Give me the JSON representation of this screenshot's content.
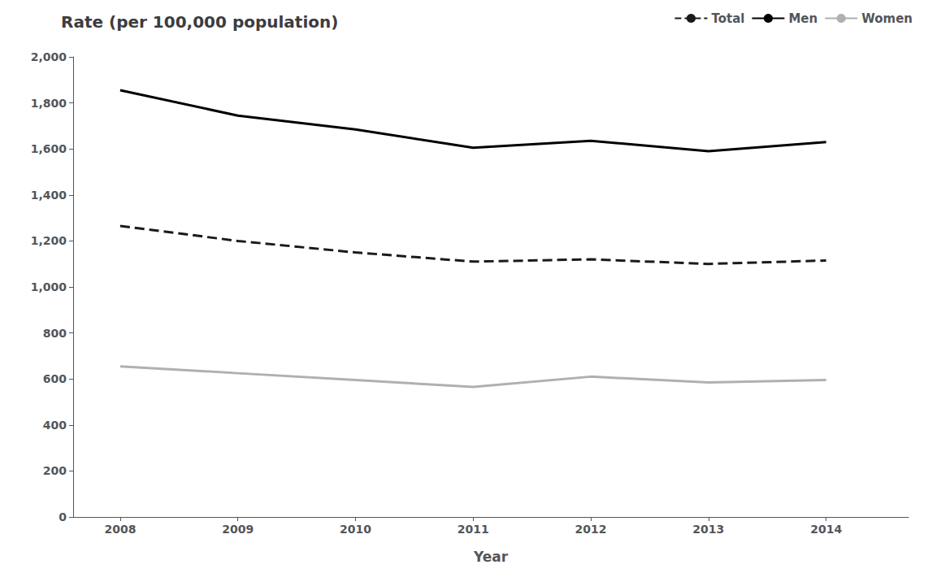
{
  "chart_data": {
    "type": "line",
    "title": "Rate (per 100,000 population)",
    "x_label": "Year",
    "x": [
      2008,
      2009,
      2010,
      2011,
      2012,
      2013,
      2014
    ],
    "series": [
      {
        "name": "Total",
        "color": "#1a1a1a",
        "line_style": "dashed",
        "values": [
          1265,
          1200,
          1150,
          1110,
          1120,
          1100,
          1115
        ]
      },
      {
        "name": "Men",
        "color": "#000000",
        "line_style": "solid",
        "values": [
          1855,
          1745,
          1685,
          1605,
          1635,
          1590,
          1630
        ]
      },
      {
        "name": "Women",
        "color": "#b0b0b0",
        "line_style": "solid",
        "values": [
          655,
          625,
          595,
          565,
          610,
          585,
          595
        ]
      }
    ],
    "xlim": [
      2007.6,
      2014.7
    ],
    "xticks": [
      2008,
      2009,
      2010,
      2011,
      2012,
      2013,
      2014
    ],
    "ylim": [
      0,
      2000
    ],
    "yticks": [
      0,
      200,
      400,
      600,
      800,
      {
        "value": 1000,
        "label": "1,000"
      },
      {
        "value": 1200,
        "label": "1,200"
      },
      {
        "value": 1400,
        "label": "1,400"
      },
      {
        "value": 1600,
        "label": "1,600"
      },
      {
        "value": 1800,
        "label": "1,800"
      },
      {
        "value": 2000,
        "label": "2,000"
      }
    ],
    "grid": false,
    "legend": "upper right"
  }
}
